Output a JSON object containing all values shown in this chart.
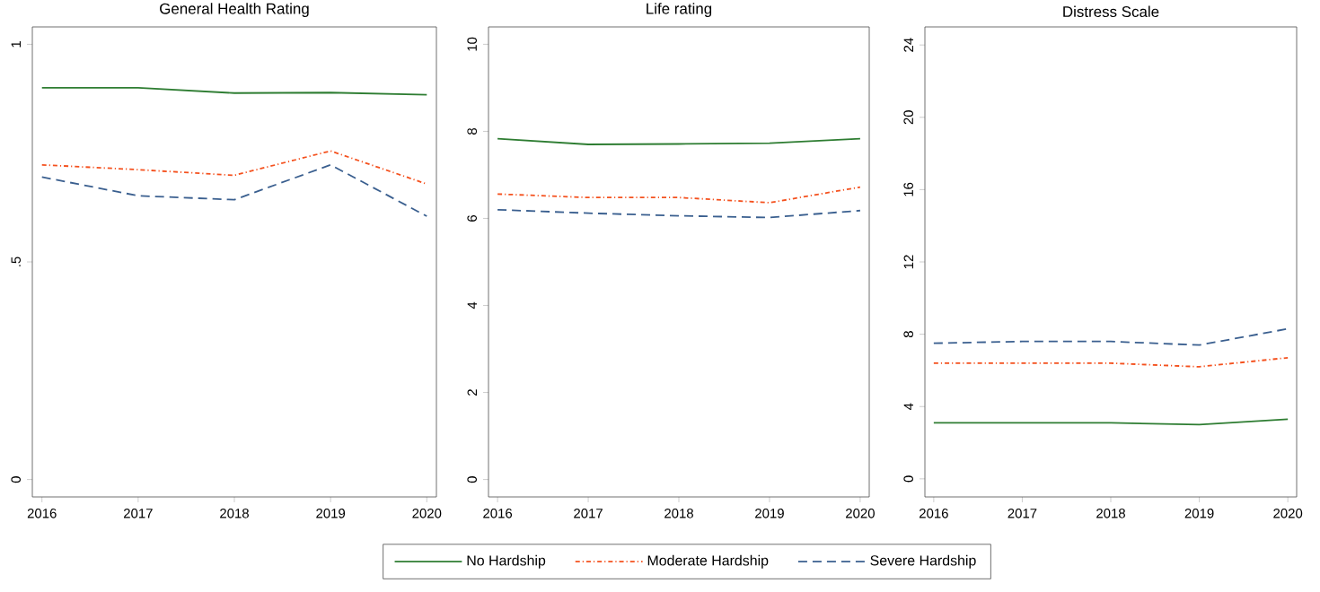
{
  "chart_data": [
    {
      "type": "line",
      "title": "General Health Rating",
      "x": [
        2016,
        2017,
        2018,
        2019,
        2020
      ],
      "xlim": [
        2015.9,
        2020.1
      ],
      "xticks": [
        2016,
        2017,
        2018,
        2019,
        2020
      ],
      "ylim": [
        -0.04,
        1.04
      ],
      "yticks": [
        0,
        {
          "value": 0.5,
          "label": ".5"
        },
        1
      ],
      "legend": "bottom",
      "marker": "none",
      "series": [
        {
          "name": "No Hardship",
          "color": "#2e7d32",
          "line_style": "solid",
          "values": [
            0.9,
            0.9,
            0.888,
            0.889,
            0.884
          ]
        },
        {
          "name": "Moderate Hardship",
          "color": "#f4511e",
          "line_style": "dotted",
          "values": [
            0.723,
            0.712,
            0.699,
            0.755,
            0.679
          ]
        },
        {
          "name": "Severe Hardship",
          "color": "#3a5f8f",
          "line_style": "dashed",
          "values": [
            0.695,
            0.652,
            0.643,
            0.723,
            0.605
          ]
        }
      ]
    },
    {
      "type": "line",
      "title": "Life rating",
      "x": [
        2016,
        2017,
        2018,
        2019,
        2020
      ],
      "xlim": [
        2015.9,
        2020.1
      ],
      "xticks": [
        2016,
        2017,
        2018,
        2019,
        2020
      ],
      "ylim": [
        -0.4,
        10.4
      ],
      "yticks": [
        0,
        2,
        4,
        6,
        8,
        10
      ],
      "marker": "none",
      "series": [
        {
          "color": "#2e7d32",
          "line_style": "solid",
          "values": [
            7.83,
            7.7,
            7.71,
            7.73,
            7.83
          ]
        },
        {
          "color": "#f4511e",
          "line_style": "dotted",
          "values": [
            6.56,
            6.48,
            6.48,
            6.36,
            6.72
          ]
        },
        {
          "color": "#3a5f8f",
          "line_style": "dashed",
          "values": [
            6.2,
            6.12,
            6.06,
            6.02,
            6.18
          ]
        }
      ]
    },
    {
      "type": "line",
      "title": "Distress Scale",
      "x": [
        2016,
        2017,
        2018,
        2019,
        2020
      ],
      "xlim": [
        2015.9,
        2020.1
      ],
      "xticks": [
        2016,
        2017,
        2018,
        2019,
        2020
      ],
      "ylim": [
        -1,
        25
      ],
      "yticks": [
        0,
        4,
        8,
        12,
        16,
        20,
        24
      ],
      "marker": "none",
      "series": [
        {
          "color": "#2e7d32",
          "line_style": "solid",
          "values": [
            3.1,
            3.1,
            3.1,
            3.0,
            3.3
          ]
        },
        {
          "color": "#f4511e",
          "line_style": "dotted",
          "values": [
            6.4,
            6.4,
            6.4,
            6.2,
            6.7
          ]
        },
        {
          "color": "#3a5f8f",
          "line_style": "dashed",
          "values": [
            7.5,
            7.6,
            7.6,
            7.4,
            8.3
          ]
        }
      ]
    }
  ]
}
